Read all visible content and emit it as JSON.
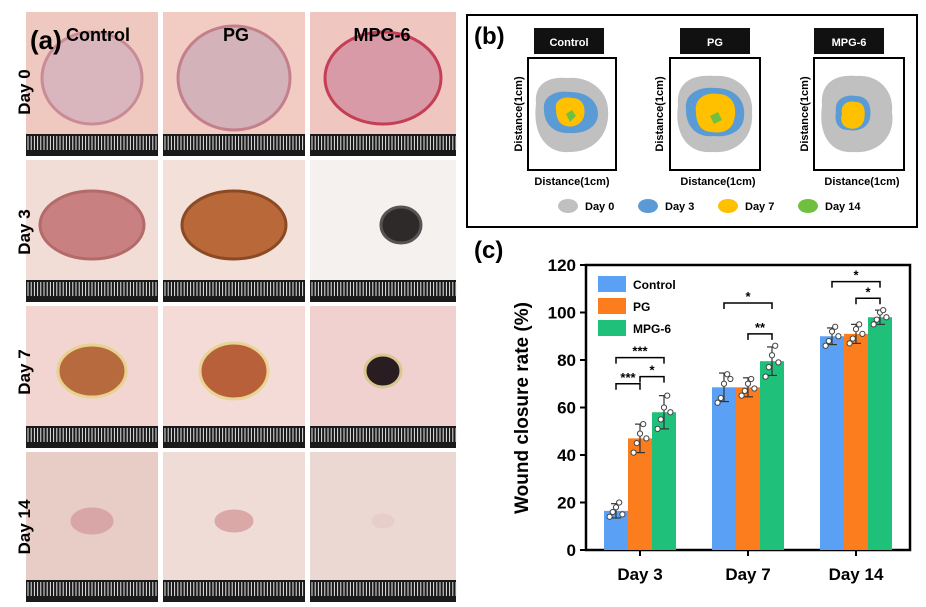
{
  "panel_a": {
    "label": "(a)",
    "columns": [
      "Control",
      "PG",
      "MPG-6"
    ],
    "rows": [
      "Day 0",
      "Day 3",
      "Day 7",
      "Day 14"
    ]
  },
  "panel_b": {
    "label": "(b)",
    "groups": [
      "Control",
      "PG",
      "MPG-6"
    ],
    "axis_x": "Distance(1cm)",
    "axis_y": "Distance(1cm)",
    "legend": [
      {
        "name": "Day 0",
        "color": "#c0c0c0"
      },
      {
        "name": "Day 3",
        "color": "#5b9bd5"
      },
      {
        "name": "Day 7",
        "color": "#ffc000"
      },
      {
        "name": "Day 14",
        "color": "#70c040"
      }
    ]
  },
  "panel_c": {
    "label": "(c)"
  },
  "chart_data": {
    "type": "bar",
    "categories": [
      "Day 3",
      "Day 7",
      "Day 14"
    ],
    "series": [
      {
        "name": "Control",
        "color": "#5aa1f5",
        "values": [
          16.5,
          68.5,
          90
        ],
        "errors": [
          3,
          6,
          3.5
        ],
        "points": [
          [
            14,
            16,
            18,
            20,
            15
          ],
          [
            62,
            64,
            70,
            74,
            72
          ],
          [
            86,
            88,
            92,
            94,
            90
          ]
        ]
      },
      {
        "name": "PG",
        "color": "#fb7d1d",
        "values": [
          47,
          68.5,
          91
        ],
        "errors": [
          6,
          4,
          4
        ],
        "points": [
          [
            41,
            45,
            49,
            53,
            47
          ],
          [
            65,
            67,
            70,
            72,
            68
          ],
          [
            87,
            89,
            93,
            95,
            91
          ]
        ]
      },
      {
        "name": "MPG-6",
        "color": "#1ec07a",
        "values": [
          58,
          79.5,
          98
        ],
        "errors": [
          7,
          6,
          3
        ],
        "points": [
          [
            51,
            55,
            60,
            65,
            58
          ],
          [
            73,
            77,
            82,
            86,
            79
          ],
          [
            95,
            97,
            100,
            101,
            98
          ]
        ]
      }
    ],
    "ylabel": "Wound closure rate (%)",
    "xlabel": "",
    "ylim": [
      0,
      120
    ],
    "yticks": [
      0,
      20,
      40,
      60,
      80,
      100,
      120
    ],
    "legend_position": "top-left",
    "significance": [
      {
        "group": "Day 3",
        "from": 0,
        "to": 1,
        "y": 70,
        "label": "***"
      },
      {
        "group": "Day 3",
        "from": 1,
        "to": 2,
        "y": 73,
        "label": "*"
      },
      {
        "group": "Day 3",
        "from": 0,
        "to": 2,
        "y": 81,
        "label": "***"
      },
      {
        "group": "Day 7",
        "from": 1,
        "to": 2,
        "y": 91,
        "label": "**"
      },
      {
        "group": "Day 7",
        "from": 0,
        "to": 2,
        "y": 104,
        "label": "*"
      },
      {
        "group": "Day 14",
        "from": 1,
        "to": 2,
        "y": 106,
        "label": "*"
      },
      {
        "group": "Day 14",
        "from": 0,
        "to": 2,
        "y": 113,
        "label": "*"
      }
    ]
  }
}
